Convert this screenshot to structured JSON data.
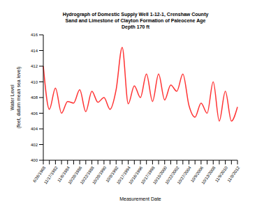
{
  "chart_data": {
    "type": "line",
    "title": [
      "Hydrograph of Domestic Supply Well 1-12-1, Crenshaw County",
      "Sand and Limestone of Clayton Formation of Paleocene Age",
      "Depth 170 ft"
    ],
    "x_label": "Measurement Date",
    "y_label": [
      "Water Level",
      "(feet, datum mean sea level)"
    ],
    "categories": [
      "6/26/1968",
      null,
      "11/17/1982",
      null,
      "11/6/1984",
      null,
      "10/28/1986",
      null,
      "10/22/1988",
      null,
      "10/28/1990",
      null,
      "10/8/1992",
      null,
      "10/17/1994",
      null,
      "10/16/1996",
      null,
      "10/17/1998",
      null,
      "10/15/2000",
      null,
      "10/22/2002",
      null,
      "10/27/2004",
      null,
      "10/9/2006",
      null,
      "10/13/2008",
      null,
      "11/9/2010",
      null,
      "11/8/2012"
    ],
    "values": [
      412,
      406.5,
      409.2,
      406.0,
      407.5,
      407.3,
      409.0,
      406.2,
      408.8,
      407.4,
      408.0,
      406.5,
      409.0,
      414.4,
      407.2,
      409.5,
      408.0,
      411.0,
      407.5,
      411.0,
      407.7,
      409.6,
      408.8,
      411.0,
      407.0,
      405.5,
      407.3,
      406.0,
      410.0,
      405.0,
      408.8,
      405.0,
      406.8
    ],
    "color": "#ff3333",
    "ylim": [
      400,
      416
    ],
    "yticks": [
      400,
      402,
      404,
      406,
      408,
      410,
      412,
      414,
      416
    ],
    "grid": false
  }
}
